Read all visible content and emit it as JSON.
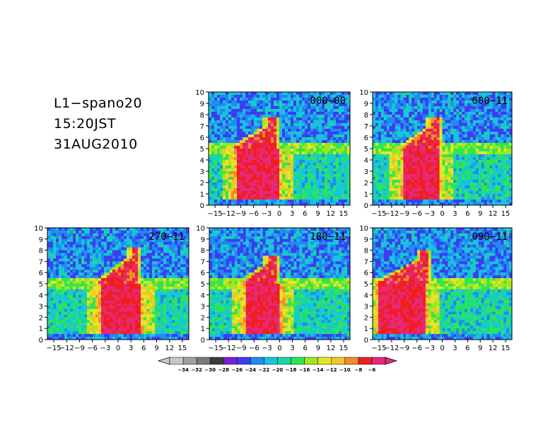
{
  "header": {
    "line1": "L1−spano20",
    "line2": "15:20JST",
    "line3": "31AUG2010"
  },
  "chart_data": {
    "type": "heatmap",
    "y_ticks": [
      "0",
      "1",
      "2",
      "3",
      "4",
      "5",
      "6",
      "7",
      "8",
      "9",
      "10"
    ],
    "ylim": [
      0,
      10
    ],
    "panels": [
      {
        "label": "000−00",
        "x_ticks": [
          "−15",
          "−12",
          "−9",
          "−6",
          "−3",
          "0",
          "3",
          "6",
          "9",
          "12",
          "15"
        ],
        "x_tick_values": [
          -15,
          -12,
          -9,
          -6,
          -3,
          0,
          3,
          6,
          9,
          12,
          15
        ],
        "xlim": [
          -16.5,
          16.5
        ],
        "core_x": [
          -11,
          0.5
        ],
        "plume_top_x": -1.5,
        "plume_top_y": 7.7
      },
      {
        "label": "000−11",
        "x_ticks": [
          "−15",
          "−12",
          "−9",
          "−6",
          "−3",
          "0",
          "3",
          "6",
          "9",
          "12",
          "15"
        ],
        "x_tick_values": [
          -15,
          -12,
          -9,
          -6,
          -3,
          0,
          3,
          6,
          9,
          12,
          15
        ],
        "xlim": [
          -16.5,
          16.5
        ],
        "core_x": [
          -10,
          0
        ],
        "plume_top_x": -1.5,
        "plume_top_y": 7.7
      },
      {
        "label": "270−11",
        "x_ticks": [
          "−15",
          "−12",
          "−9",
          "−6",
          "−3",
          "0",
          "3",
          "6",
          "9",
          "12",
          "15"
        ],
        "x_tick_values": [
          -15,
          -12,
          -9,
          -6,
          -3,
          0,
          3,
          6,
          9,
          12,
          15
        ],
        "xlim": [
          -16.5,
          16.5
        ],
        "core_x": [
          -5,
          6
        ],
        "plume_top_x": 4,
        "plume_top_y": 8.2
      },
      {
        "label": "180−11",
        "x_ticks": [
          "−15",
          "−12",
          "−9",
          "−6",
          "−3",
          "0",
          "3",
          "6",
          "9",
          "12",
          "15"
        ],
        "x_tick_values": [
          -15,
          -12,
          -9,
          -6,
          -3,
          0,
          3,
          6,
          9,
          12,
          15
        ],
        "xlim": [
          -16.5,
          16.5
        ],
        "core_x": [
          -9,
          1
        ],
        "plume_top_x": -1.5,
        "plume_top_y": 7.5
      },
      {
        "label": "090−11",
        "x_ticks": [
          "−15",
          "−12",
          "−9",
          "−6",
          "−3",
          "0",
          "3",
          "6",
          "9",
          "12",
          "15"
        ],
        "x_tick_values": [
          -15,
          -12,
          -9,
          -6,
          -3,
          0,
          3,
          6,
          9,
          12,
          15
        ],
        "xlim": [
          -16.5,
          16.5
        ],
        "core_x": [
          -16,
          -3
        ],
        "plume_top_x": -4,
        "plume_top_y": 8
      }
    ],
    "colorbar": {
      "labels": [
        "−34",
        "−32",
        "−30",
        "−28",
        "−26",
        "−24",
        "−22",
        "−20",
        "−18",
        "−16",
        "−14",
        "−12",
        "−10",
        "−8",
        "−6"
      ],
      "colors": [
        "#c8c8c8",
        "#a0a0a0",
        "#7a7a7a",
        "#3c3c3c",
        "#7a1fd6",
        "#3c3cf5",
        "#1e8cf0",
        "#18c4dc",
        "#18d8a0",
        "#30e650",
        "#a0e61e",
        "#e6e628",
        "#f0c828",
        "#f08c28",
        "#f01e1e",
        "#e6287a"
      ]
    }
  }
}
